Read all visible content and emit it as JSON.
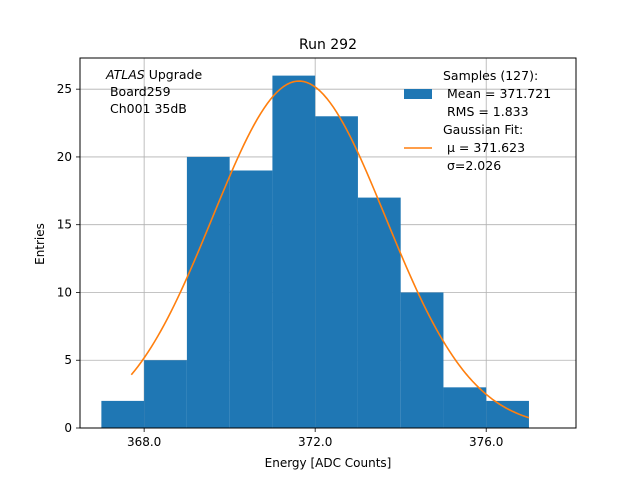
{
  "chart_data": {
    "type": "bar",
    "title": "Run 292",
    "xlabel": "Energy [ADC Counts]",
    "ylabel": "Entries",
    "xlim": [
      366.5,
      378.1
    ],
    "ylim": [
      0,
      27.3
    ],
    "grid": true,
    "bin_width": 1.0,
    "bins": [
      {
        "x": 367.0,
        "value": 2
      },
      {
        "x": 368.0,
        "value": 5
      },
      {
        "x": 369.0,
        "value": 20
      },
      {
        "x": 370.0,
        "value": 19
      },
      {
        "x": 371.0,
        "value": 26
      },
      {
        "x": 372.0,
        "value": 23
      },
      {
        "x": 373.0,
        "value": 17
      },
      {
        "x": 374.0,
        "value": 10
      },
      {
        "x": 375.0,
        "value": 3
      },
      {
        "x": 376.0,
        "value": 2
      }
    ],
    "xticks": [
      {
        "value": 368.0,
        "label": "368.0"
      },
      {
        "value": 372.0,
        "label": "372.0"
      },
      {
        "value": 376.0,
        "label": "376.0"
      }
    ],
    "yticks": [
      {
        "value": 0,
        "label": "0"
      },
      {
        "value": 5,
        "label": "5"
      },
      {
        "value": 10,
        "label": "10"
      },
      {
        "value": 15,
        "label": "15"
      },
      {
        "value": 20,
        "label": "20"
      },
      {
        "value": 25,
        "label": "25"
      }
    ],
    "fit": {
      "type": "gaussian",
      "mu": 371.623,
      "sigma": 2.026,
      "amplitude": 25.6,
      "x_range": [
        367.7,
        377.0
      ]
    },
    "annotation": {
      "lines": [
        {
          "italic": "ATLAS",
          "text": " Upgrade"
        },
        {
          "italic": "",
          "text": " Board259"
        },
        {
          "italic": "",
          "text": " Ch001 35dB"
        }
      ]
    },
    "legend": {
      "placement": "top-right",
      "entries": [
        {
          "label_lines": [
            "Samples (127):",
            " Mean = 371.721",
            " RMS = 1.833"
          ],
          "color": "#1f77b4",
          "kind": "patch"
        },
        {
          "label_lines": [
            "Gaussian Fit:",
            " μ = 371.623",
            " σ=2.026"
          ],
          "color": "#ff7f0e",
          "kind": "line"
        }
      ]
    },
    "colors": {
      "bars": "#1f77b4",
      "fit": "#ff7f0e",
      "grid": "#b0b0b0"
    }
  }
}
